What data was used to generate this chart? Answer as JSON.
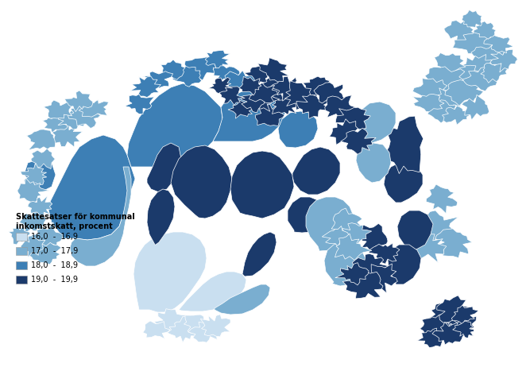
{
  "legend_title_line1": "Skattesatser för kommunal",
  "legend_title_line2": "inkomstskatt, procent",
  "legend_items": [
    {
      "label": "16,0  -  16,9",
      "color": "#c9dff0"
    },
    {
      "label": "17,0  -  17,9",
      "color": "#7aaed0"
    },
    {
      "label": "18,0  -  18,9",
      "color": "#3d7fb5"
    },
    {
      "label": "19,0  -  19,9",
      "color": "#1b3a6b"
    }
  ],
  "background_color": "#ffffff",
  "border_color": "#ffffff",
  "border_width": 0.5,
  "figsize": [
    6.67,
    4.62
  ],
  "dpi": 100
}
